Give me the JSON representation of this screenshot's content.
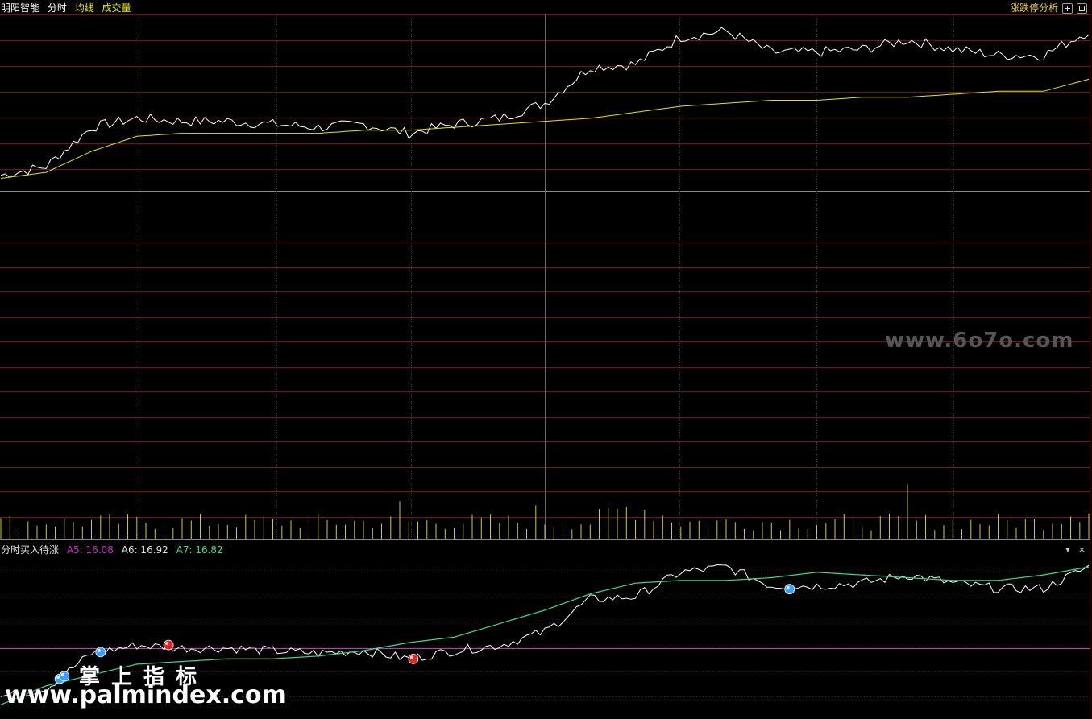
{
  "header": {
    "stock_name": "明阳智能",
    "mode_label": "分时",
    "avg_label": "均线",
    "volume_label": "成交量",
    "right_label": "涨跌停分析"
  },
  "indicator": {
    "name": "分时买入待涨",
    "a5_label": "A5: 16.08",
    "a6_label": "A6: 16.92",
    "a7_label": "A7: 16.82",
    "collapse_glyph": "▾",
    "close_glyph": "×"
  },
  "watermarks": {
    "site_top": "www.6o7o.com",
    "site_cn": "掌上指标",
    "site_en": "www.palmindex.com"
  },
  "colors": {
    "background": "#000000",
    "grid": "#7a1414",
    "price_line": "#ffffff",
    "avg_line": "#e6e600",
    "volume_bar": "#d4c83a",
    "indicator_green": "#3cdc8c",
    "indicator_purple": "#c832c8",
    "a5_color": "#c832c8",
    "a6_color": "#dddddd",
    "a7_color": "#3cdc8c",
    "buy_marker": "#3aa0ff",
    "sell_marker": "#e02828"
  },
  "chart_data": {
    "type": "line",
    "x": [
      0,
      10,
      20,
      30,
      40,
      50,
      60,
      70,
      80,
      90,
      100,
      110,
      120,
      130,
      140,
      150,
      160,
      170,
      180,
      190,
      200,
      210,
      220,
      230,
      240
    ],
    "series": [
      {
        "role": "price",
        "values": [
          1.1,
          1.4,
          2.7,
          3.0,
          2.9,
          2.9,
          2.8,
          2.7,
          2.8,
          2.5,
          2.8,
          3.0,
          3.5,
          4.7,
          4.8,
          5.7,
          5.9,
          5.2,
          5.2,
          5.3,
          5.6,
          5.3,
          5.1,
          5.1,
          5.9
        ]
      },
      {
        "role": "avg",
        "values": [
          1.0,
          1.2,
          1.9,
          2.4,
          2.5,
          2.5,
          2.5,
          2.5,
          2.6,
          2.6,
          2.7,
          2.8,
          2.9,
          3.0,
          3.2,
          3.4,
          3.5,
          3.6,
          3.6,
          3.7,
          3.7,
          3.8,
          3.9,
          3.9,
          4.3
        ]
      },
      {
        "role": "volume",
        "values": [
          1,
          1,
          1,
          1,
          1,
          1,
          1,
          1,
          1,
          1,
          1,
          1,
          1,
          1,
          2,
          1,
          1,
          1,
          1,
          1,
          1,
          1,
          1,
          1,
          2
        ]
      },
      {
        "role": "indicator_price",
        "values": [
          1.1,
          1.4,
          2.7,
          3.0,
          2.9,
          2.9,
          2.8,
          2.7,
          2.8,
          2.5,
          2.8,
          3.0,
          3.5,
          4.7,
          4.8,
          5.7,
          5.9,
          5.2,
          5.2,
          5.3,
          5.6,
          5.3,
          5.1,
          5.1,
          5.9
        ]
      },
      {
        "role": "indicator_smooth",
        "values": [
          0.8,
          1.5,
          1.9,
          2.3,
          2.4,
          2.5,
          2.5,
          2.6,
          2.8,
          3.1,
          3.3,
          3.8,
          4.3,
          4.9,
          5.3,
          5.4,
          5.4,
          5.5,
          5.7,
          5.6,
          5.5,
          5.4,
          5.4,
          5.6,
          5.9
        ]
      }
    ]
  }
}
